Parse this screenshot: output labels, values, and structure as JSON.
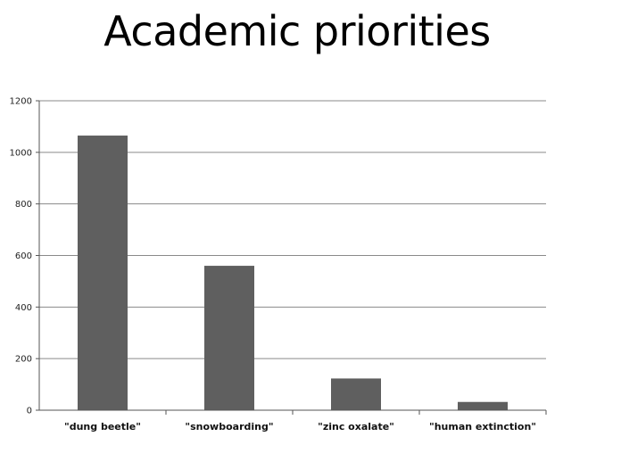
{
  "chart_data": {
    "type": "bar",
    "title": "Academic priorities",
    "categories": [
      "\"dung beetle\"",
      "\"snowboarding\"",
      "\"zinc oxalate\"",
      "\"human extinction\""
    ],
    "values": [
      1065,
      560,
      123,
      32
    ],
    "ylim": [
      0,
      1200
    ],
    "yticks": [
      0,
      200,
      400,
      600,
      800,
      1000,
      1200
    ],
    "grid": true,
    "legend": "none",
    "bar_color": "#5f5f5f",
    "xlabel": "",
    "ylabel": ""
  }
}
